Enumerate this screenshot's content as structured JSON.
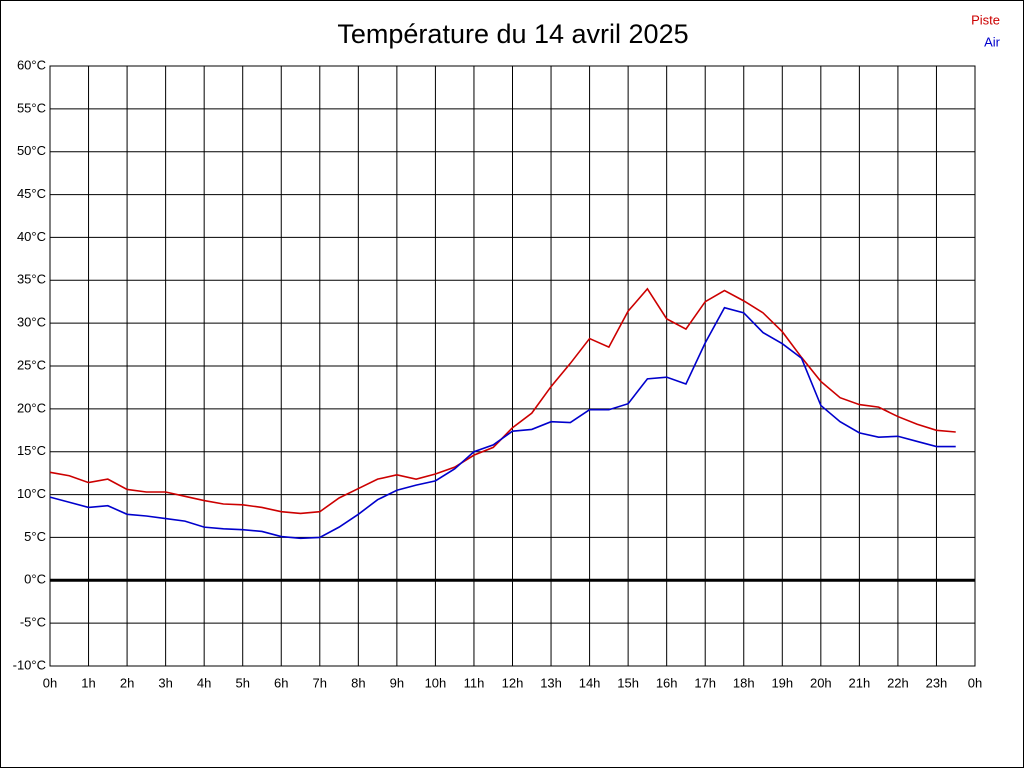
{
  "chart_data": {
    "type": "line",
    "title": "Température du 14 avril 2025",
    "x": [
      0,
      0.5,
      1,
      1.5,
      2,
      2.5,
      3,
      3.5,
      4,
      4.5,
      5,
      5.5,
      6,
      6.5,
      7,
      7.5,
      8,
      8.5,
      9,
      9.5,
      10,
      10.5,
      11,
      11.5,
      12,
      12.5,
      13,
      13.5,
      14,
      14.5,
      15,
      15.5,
      16,
      16.5,
      17,
      17.5,
      18,
      18.5,
      19,
      19.5,
      20,
      20.5,
      21,
      21.5,
      22,
      22.5,
      23,
      23.5
    ],
    "series": [
      {
        "name": "Piste",
        "color": "#cc0000",
        "values": [
          12.6,
          12.2,
          11.4,
          11.8,
          10.6,
          10.3,
          10.3,
          9.8,
          9.3,
          8.9,
          8.8,
          8.5,
          8.0,
          7.8,
          8.0,
          9.6,
          10.7,
          11.8,
          12.3,
          11.8,
          12.4,
          13.2,
          14.6,
          15.5,
          17.8,
          19.5,
          22.6,
          25.3,
          28.2,
          27.2,
          31.4,
          34.0,
          30.5,
          29.3,
          32.5,
          33.8,
          32.6,
          31.2,
          29.0,
          26.0,
          23.2,
          21.3,
          20.5,
          20.2,
          19.1,
          18.2,
          17.5,
          17.3
        ]
      },
      {
        "name": "Air",
        "color": "#0000cc",
        "values": [
          9.7,
          9.1,
          8.5,
          8.7,
          7.7,
          7.5,
          7.2,
          6.9,
          6.2,
          6.0,
          5.9,
          5.7,
          5.1,
          4.9,
          5.0,
          6.2,
          7.7,
          9.4,
          10.5,
          11.1,
          11.6,
          13.0,
          15.0,
          15.8,
          17.4,
          17.6,
          18.5,
          18.4,
          19.9,
          19.9,
          20.6,
          23.5,
          23.7,
          22.9,
          27.7,
          31.8,
          31.2,
          28.9,
          27.6,
          25.9,
          20.4,
          18.5,
          17.2,
          16.7,
          16.8,
          16.2,
          15.6,
          15.6
        ]
      }
    ],
    "xlim": [
      0,
      24
    ],
    "xticks": [
      {
        "value": 0,
        "label": "0h"
      },
      {
        "value": 1,
        "label": "1h"
      },
      {
        "value": 2,
        "label": "2h"
      },
      {
        "value": 3,
        "label": "3h"
      },
      {
        "value": 4,
        "label": "4h"
      },
      {
        "value": 5,
        "label": "5h"
      },
      {
        "value": 6,
        "label": "6h"
      },
      {
        "value": 7,
        "label": "7h"
      },
      {
        "value": 8,
        "label": "8h"
      },
      {
        "value": 9,
        "label": "9h"
      },
      {
        "value": 10,
        "label": "10h"
      },
      {
        "value": 11,
        "label": "11h"
      },
      {
        "value": 12,
        "label": "12h"
      },
      {
        "value": 13,
        "label": "13h"
      },
      {
        "value": 14,
        "label": "14h"
      },
      {
        "value": 15,
        "label": "15h"
      },
      {
        "value": 16,
        "label": "16h"
      },
      {
        "value": 17,
        "label": "17h"
      },
      {
        "value": 18,
        "label": "18h"
      },
      {
        "value": 19,
        "label": "19h"
      },
      {
        "value": 20,
        "label": "20h"
      },
      {
        "value": 21,
        "label": "21h"
      },
      {
        "value": 22,
        "label": "22h"
      },
      {
        "value": 23,
        "label": "23h"
      },
      {
        "value": 24,
        "label": "0h"
      }
    ],
    "ylim": [
      -10,
      60
    ],
    "yticks": [
      {
        "value": -10,
        "label": "-10°C"
      },
      {
        "value": -5,
        "label": "-5°C"
      },
      {
        "value": 0,
        "label": "0°C"
      },
      {
        "value": 5,
        "label": "5°C"
      },
      {
        "value": 10,
        "label": "10°C"
      },
      {
        "value": 15,
        "label": "15°C"
      },
      {
        "value": 20,
        "label": "20°C"
      },
      {
        "value": 25,
        "label": "25°C"
      },
      {
        "value": 30,
        "label": "30°C"
      },
      {
        "value": 35,
        "label": "35°C"
      },
      {
        "value": 40,
        "label": "40°C"
      },
      {
        "value": 45,
        "label": "45°C"
      },
      {
        "value": 50,
        "label": "50°C"
      },
      {
        "value": 55,
        "label": "55°C"
      },
      {
        "value": 60,
        "label": "60°C"
      }
    ],
    "grid": true,
    "legend": "top-right"
  }
}
